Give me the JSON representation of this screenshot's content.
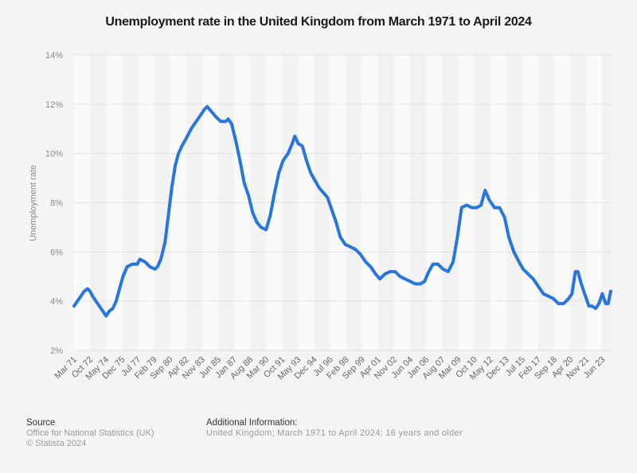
{
  "title": "Unemployment rate in the United Kingdom from March 1971 to April 2024",
  "footer": {
    "source_heading": "Source",
    "source_text": "Office for National Statistics (UK)",
    "copyright": "© Statista 2024",
    "info_heading": "Additional Information:",
    "info_text": "United Kingdom; March 1971 to April 2024; 16 years and older"
  },
  "colors": {
    "line": "#2876dd",
    "background": "#f4f4f4",
    "band_light": "#fafafa",
    "band_dark": "#f2f2f2",
    "grid": "#d0d0d0"
  },
  "chart_data": {
    "type": "line",
    "title": "Unemployment rate in the United Kingdom from March 1971 to April 2024",
    "xlabel": "",
    "ylabel": "Unemployment rate",
    "ylim": [
      2,
      14
    ],
    "yticks": [
      "2%",
      "4%",
      "6%",
      "8%",
      "10%",
      "12%",
      "14%"
    ],
    "ytick_values": [
      2,
      4,
      6,
      8,
      10,
      12,
      14
    ],
    "grid": true,
    "legend": "none",
    "x_start": "Mar 1971",
    "x_end": "Apr 2024",
    "xticks": [
      "Mar 71",
      "Oct 72",
      "May 74",
      "Dec 75",
      "Jul 77",
      "Feb 79",
      "Sep 80",
      "Apr 82",
      "Nov 83",
      "Jun 85",
      "Jan 87",
      "Aug 88",
      "Mar 90",
      "Oct 91",
      "May 93",
      "Dec 94",
      "Jul 96",
      "Feb 98",
      "Sep 99",
      "Apr 01",
      "Nov 02",
      "Jun 04",
      "Jan 06",
      "Aug 07",
      "Mar 09",
      "Oct 10",
      "May 12",
      "Dec 13",
      "Jul 15",
      "Feb 17",
      "Sep 18",
      "Apr 20",
      "Nov 21",
      "Jun 23"
    ],
    "series": [
      {
        "name": "Unemployment rate",
        "points": [
          [
            "1971-03",
            3.8
          ],
          [
            "1971-07",
            4.0
          ],
          [
            "1971-11",
            4.2
          ],
          [
            "1972-03",
            4.4
          ],
          [
            "1972-07",
            4.5
          ],
          [
            "1972-10",
            4.4
          ],
          [
            "1973-01",
            4.2
          ],
          [
            "1973-05",
            4.0
          ],
          [
            "1973-09",
            3.8
          ],
          [
            "1974-01",
            3.6
          ],
          [
            "1974-05",
            3.4
          ],
          [
            "1974-09",
            3.6
          ],
          [
            "1975-01",
            3.7
          ],
          [
            "1975-05",
            4.0
          ],
          [
            "1975-09",
            4.5
          ],
          [
            "1976-01",
            5.0
          ],
          [
            "1976-06",
            5.4
          ],
          [
            "1976-12",
            5.5
          ],
          [
            "1977-06",
            5.5
          ],
          [
            "1977-09",
            5.7
          ],
          [
            "1978-03",
            5.6
          ],
          [
            "1978-09",
            5.4
          ],
          [
            "1979-03",
            5.3
          ],
          [
            "1979-06",
            5.4
          ],
          [
            "1979-10",
            5.7
          ],
          [
            "1980-03",
            6.4
          ],
          [
            "1980-07",
            7.5
          ],
          [
            "1980-11",
            8.6
          ],
          [
            "1981-03",
            9.5
          ],
          [
            "1981-07",
            10.0
          ],
          [
            "1981-11",
            10.3
          ],
          [
            "1982-04",
            10.6
          ],
          [
            "1982-10",
            11.0
          ],
          [
            "1983-04",
            11.3
          ],
          [
            "1983-10",
            11.6
          ],
          [
            "1984-02",
            11.8
          ],
          [
            "1984-05",
            11.9
          ],
          [
            "1984-10",
            11.7
          ],
          [
            "1985-03",
            11.5
          ],
          [
            "1985-09",
            11.3
          ],
          [
            "1986-03",
            11.3
          ],
          [
            "1986-06",
            11.4
          ],
          [
            "1986-10",
            11.2
          ],
          [
            "1987-03",
            10.5
          ],
          [
            "1987-08",
            9.7
          ],
          [
            "1988-01",
            8.8
          ],
          [
            "1988-06",
            8.3
          ],
          [
            "1988-11",
            7.6
          ],
          [
            "1989-04",
            7.2
          ],
          [
            "1989-09",
            7.0
          ],
          [
            "1990-03",
            6.9
          ],
          [
            "1990-08",
            7.5
          ],
          [
            "1991-01",
            8.4
          ],
          [
            "1991-06",
            9.2
          ],
          [
            "1991-11",
            9.7
          ],
          [
            "1992-05",
            10.0
          ],
          [
            "1992-10",
            10.4
          ],
          [
            "1993-01",
            10.7
          ],
          [
            "1993-05",
            10.4
          ],
          [
            "1993-10",
            10.3
          ],
          [
            "1994-03",
            9.7
          ],
          [
            "1994-08",
            9.2
          ],
          [
            "1995-01",
            8.9
          ],
          [
            "1995-06",
            8.6
          ],
          [
            "1995-11",
            8.4
          ],
          [
            "1996-04",
            8.2
          ],
          [
            "1996-09",
            7.7
          ],
          [
            "1997-02",
            7.2
          ],
          [
            "1997-07",
            6.6
          ],
          [
            "1998-01",
            6.3
          ],
          [
            "1998-07",
            6.2
          ],
          [
            "1999-01",
            6.1
          ],
          [
            "1999-07",
            5.9
          ],
          [
            "2000-01",
            5.6
          ],
          [
            "2000-07",
            5.4
          ],
          [
            "2001-01",
            5.1
          ],
          [
            "2001-06",
            4.9
          ],
          [
            "2001-12",
            5.1
          ],
          [
            "2002-06",
            5.2
          ],
          [
            "2002-12",
            5.2
          ],
          [
            "2003-06",
            5.0
          ],
          [
            "2003-12",
            4.9
          ],
          [
            "2004-06",
            4.8
          ],
          [
            "2004-12",
            4.7
          ],
          [
            "2005-06",
            4.7
          ],
          [
            "2005-11",
            4.8
          ],
          [
            "2006-04",
            5.2
          ],
          [
            "2006-09",
            5.5
          ],
          [
            "2007-03",
            5.5
          ],
          [
            "2007-09",
            5.3
          ],
          [
            "2008-03",
            5.2
          ],
          [
            "2008-09",
            5.6
          ],
          [
            "2009-02",
            6.6
          ],
          [
            "2009-07",
            7.8
          ],
          [
            "2010-01",
            7.9
          ],
          [
            "2010-07",
            7.8
          ],
          [
            "2011-01",
            7.8
          ],
          [
            "2011-06",
            7.9
          ],
          [
            "2011-11",
            8.5
          ],
          [
            "2012-04",
            8.1
          ],
          [
            "2012-10",
            7.8
          ],
          [
            "2013-04",
            7.8
          ],
          [
            "2013-10",
            7.4
          ],
          [
            "2014-03",
            6.6
          ],
          [
            "2014-09",
            6.0
          ],
          [
            "2015-03",
            5.6
          ],
          [
            "2015-08",
            5.3
          ],
          [
            "2016-02",
            5.1
          ],
          [
            "2016-08",
            4.9
          ],
          [
            "2017-02",
            4.6
          ],
          [
            "2017-08",
            4.3
          ],
          [
            "2018-02",
            4.2
          ],
          [
            "2018-08",
            4.1
          ],
          [
            "2019-02",
            3.9
          ],
          [
            "2019-08",
            3.9
          ],
          [
            "2020-02",
            4.1
          ],
          [
            "2020-06",
            4.3
          ],
          [
            "2020-10",
            5.2
          ],
          [
            "2021-01",
            5.2
          ],
          [
            "2021-05",
            4.7
          ],
          [
            "2021-10",
            4.2
          ],
          [
            "2022-02",
            3.8
          ],
          [
            "2022-06",
            3.8
          ],
          [
            "2022-10",
            3.7
          ],
          [
            "2023-02",
            3.9
          ],
          [
            "2023-06",
            4.3
          ],
          [
            "2023-10",
            3.9
          ],
          [
            "2024-01",
            3.9
          ],
          [
            "2024-04",
            4.4
          ]
        ]
      }
    ]
  }
}
